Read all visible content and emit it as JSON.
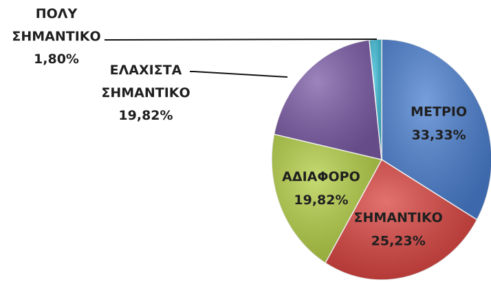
{
  "chart_data": {
    "type": "pie",
    "categories": [
      "ΜΕΤΡΙΟ",
      "ΣΗΜΑΝΤΙΚΟ",
      "ΑΔΙΑΦΟΡΟ",
      "ΕΛΑΧΙΣΤΑ ΣΗΜΑΝΤΙΚΟ",
      "ΠΟΛΥ ΣΗΜΑΝΤΙΚΟ"
    ],
    "values": [
      33.33,
      25.23,
      19.82,
      19.82,
      1.8
    ],
    "value_labels": [
      "33,33%",
      "25,23%",
      "19,82%",
      "19,82%",
      "1,80%"
    ],
    "colors": [
      "#4a7fd0",
      "#d9433f",
      "#b3cf45",
      "#7b5ba6",
      "#3cbcd6"
    ]
  }
}
